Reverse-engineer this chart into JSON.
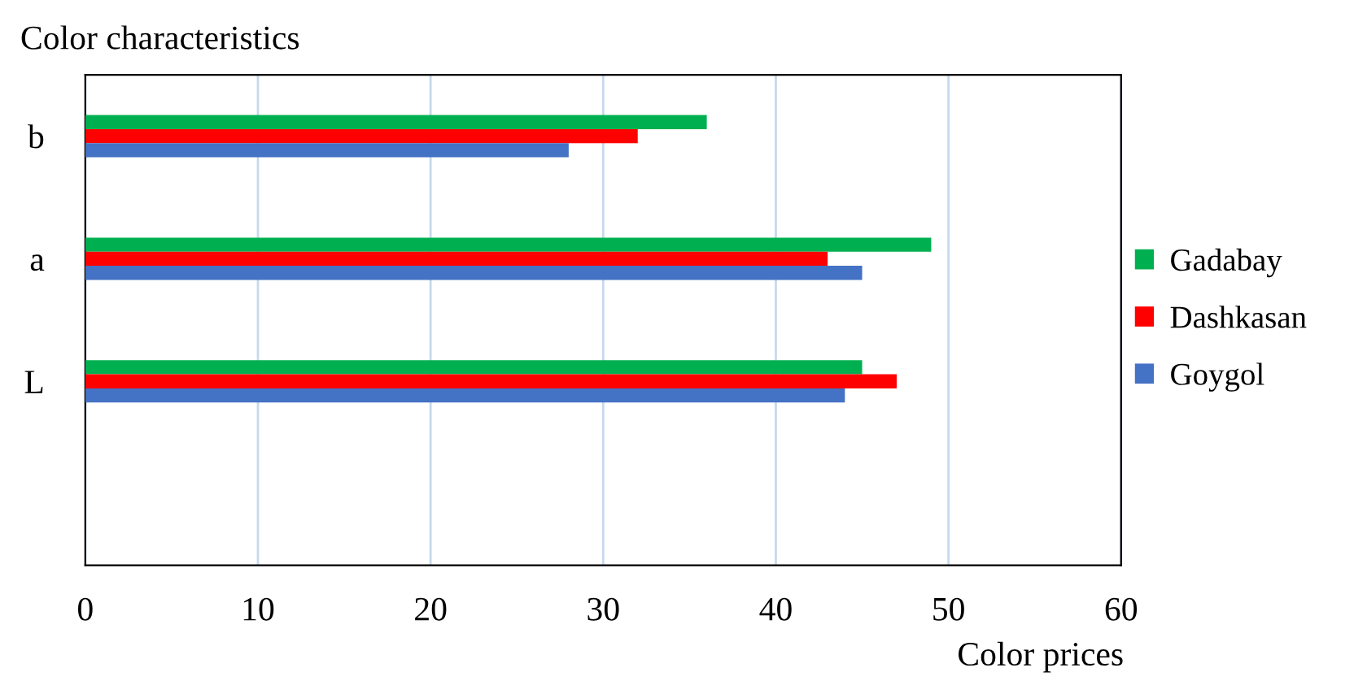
{
  "chart_data": {
    "type": "bar",
    "orientation": "horizontal",
    "ylabel": "Color characteristics",
    "xlabel": "Color prices",
    "categories": [
      "b",
      "a",
      "L",
      null
    ],
    "series": [
      {
        "name": "Gadabay",
        "color": "#00b050",
        "values": [
          36,
          49,
          45,
          null
        ]
      },
      {
        "name": "Dashkasan",
        "color": "#ff0000",
        "values": [
          32,
          43,
          47,
          null
        ]
      },
      {
        "name": "Goygol",
        "color": "#4472c4",
        "values": [
          28,
          45,
          44,
          null
        ]
      }
    ],
    "xlim": [
      0,
      60
    ],
    "xticks": [
      0,
      10,
      20,
      30,
      40,
      50,
      60
    ],
    "grid": "x",
    "legend": "right"
  }
}
